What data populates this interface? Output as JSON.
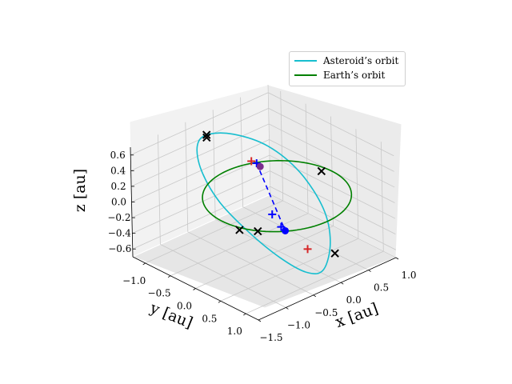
{
  "chart_data": {
    "type": "line",
    "projection": "3d",
    "title": "",
    "xlabel": "x [au]",
    "ylabel": "y [au]",
    "zlabel": "z [au]",
    "xlim": [
      -1.25,
      1.25
    ],
    "ylim": [
      -1.5,
      1.0
    ],
    "zlim": [
      -0.7,
      0.7
    ],
    "x_ticks": [
      "−1.0",
      "−0.5",
      "0.0",
      "0.5",
      "1.0"
    ],
    "y_ticks": [
      "−1.5",
      "−1.0",
      "−0.5",
      "0.0",
      "0.5",
      "1.0"
    ],
    "z_ticks": [
      "−0.6",
      "−0.4",
      "−0.2",
      "0.0",
      "0.2",
      "0.4",
      "0.6"
    ],
    "grid": true,
    "legend_position": "top-right",
    "series": [
      {
        "name": "Asteroid’s orbit",
        "kind": "ellipse",
        "color": "#17becf",
        "points": [
          {
            "x": -0.92,
            "y": -0.42,
            "z": 0.62
          },
          {
            "x": -0.8,
            "y": -0.05,
            "z": 0.55
          },
          {
            "x": -0.55,
            "y": 0.35,
            "z": 0.35
          },
          {
            "x": -0.2,
            "y": 0.6,
            "z": 0.05
          },
          {
            "x": 0.2,
            "y": 0.65,
            "z": -0.3
          },
          {
            "x": 0.55,
            "y": 0.45,
            "z": -0.55
          },
          {
            "x": 0.85,
            "y": 0.05,
            "z": -0.68
          },
          {
            "x": 0.85,
            "y": -0.25,
            "z": -0.62
          },
          {
            "x": 0.65,
            "y": -0.55,
            "z": -0.4
          },
          {
            "x": 0.3,
            "y": -0.8,
            "z": -0.1
          },
          {
            "x": -0.1,
            "y": -0.95,
            "z": 0.2
          },
          {
            "x": -0.5,
            "y": -0.9,
            "z": 0.45
          },
          {
            "x": -0.8,
            "y": -0.7,
            "z": 0.6
          }
        ]
      },
      {
        "name": "Earth’s orbit",
        "kind": "circle",
        "color": "#008000",
        "radius": 1.0,
        "z": 0.0
      },
      {
        "name": "",
        "kind": "dashed-segment",
        "color": "#0000ff",
        "points": [
          {
            "x": -0.63,
            "y": 0.21,
            "z": 0.15
          },
          {
            "x": 0.42,
            "y": -0.24,
            "z": -0.23
          }
        ]
      }
    ],
    "markers": {
      "black_x": [
        {
          "x": -0.92,
          "y": -0.42,
          "z": 0.62
        },
        {
          "x": -0.83,
          "y": -0.5,
          "z": 0.64
        },
        {
          "x": 0.35,
          "y": -1.0,
          "z": 0.0
        },
        {
          "x": -0.1,
          "y": 0.9,
          "z": 0.0
        },
        {
          "x": 0.55,
          "y": -0.85,
          "z": 0.0
        },
        {
          "x": 0.75,
          "y": 0.35,
          "z": -0.6
        }
      ],
      "red_plus": [
        {
          "x": -0.69,
          "y": 0.17,
          "z": 0.17
        },
        {
          "x": 0.65,
          "y": -0.05,
          "z": -0.45
        }
      ],
      "blue_plus": [
        {
          "x": -0.63,
          "y": 0.21,
          "z": 0.15
        },
        {
          "x": 0.12,
          "y": -0.2,
          "z": -0.13
        },
        {
          "x": 0.35,
          "y": -0.25,
          "z": -0.2
        }
      ],
      "blue_dot": [
        {
          "x": 0.42,
          "y": -0.24,
          "z": -0.23
        }
      ],
      "purple_dot": [
        {
          "x": -0.56,
          "y": 0.21,
          "z": 0.13
        }
      ]
    }
  }
}
